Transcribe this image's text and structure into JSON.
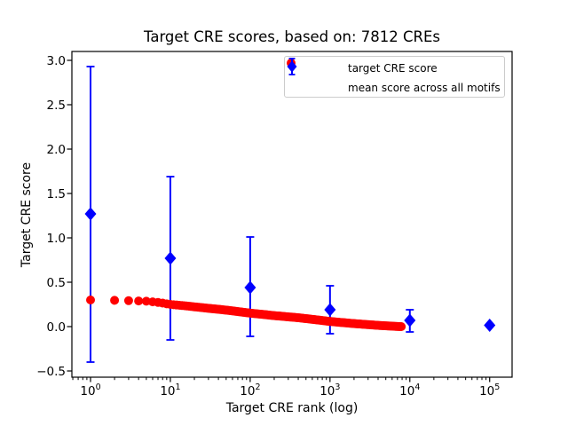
{
  "figure": {
    "background": "#ffffff",
    "text_color": "#000000",
    "axes_edge_color": "#000000",
    "legend_edge_color": "#cccccc"
  },
  "chart_data": {
    "type": "scatter",
    "title": "Target CRE scores, based on: 7812 CREs",
    "xlabel": "Target CRE rank (log)",
    "ylabel": "Target CRE score",
    "x_scale": "log",
    "grid": false,
    "legend_position": "upper right",
    "xlim": [
      0.584,
      191000
    ],
    "ylim": [
      -0.57,
      3.1
    ],
    "x_ticks": [
      1,
      10,
      100,
      1000,
      10000,
      100000
    ],
    "x_tick_labels": [
      {
        "base": "10",
        "exp": "0"
      },
      {
        "base": "10",
        "exp": "1"
      },
      {
        "base": "10",
        "exp": "2"
      },
      {
        "base": "10",
        "exp": "3"
      },
      {
        "base": "10",
        "exp": "4"
      },
      {
        "base": "10",
        "exp": "5"
      }
    ],
    "y_ticks": [
      -0.5,
      0.0,
      0.5,
      1.0,
      1.5,
      2.0,
      2.5,
      3.0
    ],
    "y_tick_labels": [
      "−0.5",
      "0.0",
      "0.5",
      "1.0",
      "1.5",
      "2.0",
      "2.5",
      "3.0"
    ],
    "series": [
      {
        "name": "target CRE score",
        "marker": "circle",
        "color": "#ff0000",
        "rank_min": 1,
        "rank_max": 7812,
        "control_points": [
          [
            1,
            0.3
          ],
          [
            2,
            0.296
          ],
          [
            3,
            0.292
          ],
          [
            4,
            0.289
          ],
          [
            5,
            0.286
          ],
          [
            7,
            0.273
          ],
          [
            10,
            0.25
          ],
          [
            15,
            0.235
          ],
          [
            20,
            0.223
          ],
          [
            30,
            0.206
          ],
          [
            50,
            0.186
          ],
          [
            100,
            0.152
          ],
          [
            200,
            0.124
          ],
          [
            400,
            0.1
          ],
          [
            700,
            0.075
          ],
          [
            1000,
            0.058
          ],
          [
            2000,
            0.034
          ],
          [
            4000,
            0.014
          ],
          [
            6000,
            0.005
          ],
          [
            7812,
            0.0
          ]
        ]
      },
      {
        "name": "mean score across all motifs",
        "marker": "diamond",
        "color": "#0000ff",
        "x": [
          1,
          10,
          100,
          1000,
          10000,
          100000
        ],
        "y": [
          1.27,
          0.77,
          0.44,
          0.19,
          0.07,
          0.015
        ],
        "yerr_plus": [
          1.66,
          0.92,
          0.57,
          0.27,
          0.12,
          0
        ],
        "yerr_minus": [
          1.67,
          0.92,
          0.55,
          0.27,
          0.13,
          0
        ]
      }
    ]
  }
}
